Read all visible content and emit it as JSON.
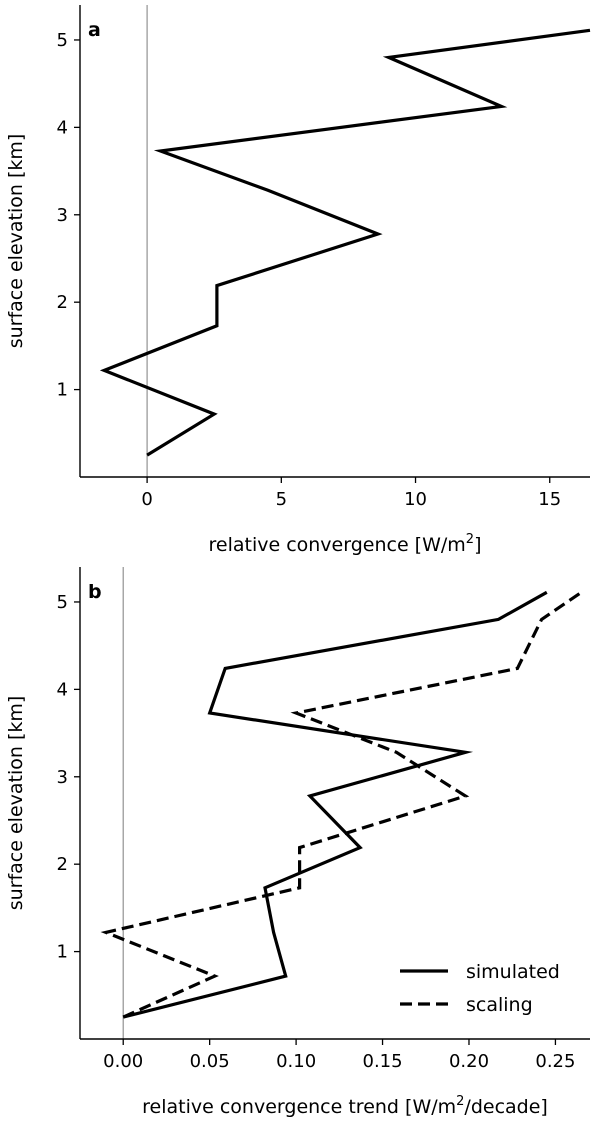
{
  "chart_data": [
    {
      "type": "line",
      "panel_label": "a",
      "xlabel": "relative convergence [W/m",
      "xlabel_sup": "2",
      "xlabel_suffix": "]",
      "ylabel": "surface elevation [km]",
      "xlim": [
        -2.5,
        16.5
      ],
      "ylim": [
        0.0,
        5.4
      ],
      "xticks": [
        0,
        5,
        10,
        15
      ],
      "xtick_labels": [
        "0",
        "5",
        "10",
        "15"
      ],
      "yticks": [
        1,
        2,
        3,
        4,
        5
      ],
      "ytick_labels": [
        "1",
        "2",
        "3",
        "4",
        "5"
      ],
      "zero_line": 0,
      "grid": false,
      "series": [
        {
          "style": "solid",
          "points": [
            {
              "x": 0.0,
              "y": 0.25
            },
            {
              "x": 2.5,
              "y": 0.72
            },
            {
              "x": -1.6,
              "y": 1.22
            },
            {
              "x": 2.6,
              "y": 1.73
            },
            {
              "x": 2.6,
              "y": 2.19
            },
            {
              "x": 8.6,
              "y": 2.78
            },
            {
              "x": 4.5,
              "y": 3.28
            },
            {
              "x": 0.5,
              "y": 3.73
            },
            {
              "x": 13.2,
              "y": 4.24
            },
            {
              "x": 9.0,
              "y": 4.8
            },
            {
              "x": 16.5,
              "y": 5.11
            }
          ]
        }
      ]
    },
    {
      "type": "line",
      "panel_label": "b",
      "xlabel": "relative convergence trend [W/m",
      "xlabel_sup": "2",
      "xlabel_suffix": "/decade]",
      "ylabel": "surface elevation [km]",
      "xlim": [
        -0.025,
        0.27
      ],
      "ylim": [
        0.0,
        5.4
      ],
      "xticks": [
        0.0,
        0.05,
        0.1,
        0.15,
        0.2,
        0.25
      ],
      "xtick_labels": [
        "0.00",
        "0.05",
        "0.10",
        "0.15",
        "0.20",
        "0.25"
      ],
      "yticks": [
        1,
        2,
        3,
        4,
        5
      ],
      "ytick_labels": [
        "1",
        "2",
        "3",
        "4",
        "5"
      ],
      "zero_line": 0,
      "grid": false,
      "legend_position": "bottom-right",
      "series": [
        {
          "name": "simulated",
          "style": "solid",
          "points": [
            {
              "x": 0.0,
              "y": 0.25
            },
            {
              "x": 0.094,
              "y": 0.72
            },
            {
              "x": 0.087,
              "y": 1.22
            },
            {
              "x": 0.082,
              "y": 1.73
            },
            {
              "x": 0.137,
              "y": 2.19
            },
            {
              "x": 0.108,
              "y": 2.78
            },
            {
              "x": 0.198,
              "y": 3.28
            },
            {
              "x": 0.05,
              "y": 3.73
            },
            {
              "x": 0.059,
              "y": 4.24
            },
            {
              "x": 0.217,
              "y": 4.8
            },
            {
              "x": 0.245,
              "y": 5.11
            }
          ]
        },
        {
          "name": "scaling",
          "style": "dashed",
          "points": [
            {
              "x": 0.0,
              "y": 0.25
            },
            {
              "x": 0.053,
              "y": 0.72
            },
            {
              "x": -0.01,
              "y": 1.22
            },
            {
              "x": 0.102,
              "y": 1.73
            },
            {
              "x": 0.102,
              "y": 2.19
            },
            {
              "x": 0.198,
              "y": 2.78
            },
            {
              "x": 0.158,
              "y": 3.28
            },
            {
              "x": 0.1,
              "y": 3.73
            },
            {
              "x": 0.228,
              "y": 4.24
            },
            {
              "x": 0.242,
              "y": 4.8
            },
            {
              "x": 0.265,
              "y": 5.11
            }
          ]
        }
      ]
    }
  ]
}
